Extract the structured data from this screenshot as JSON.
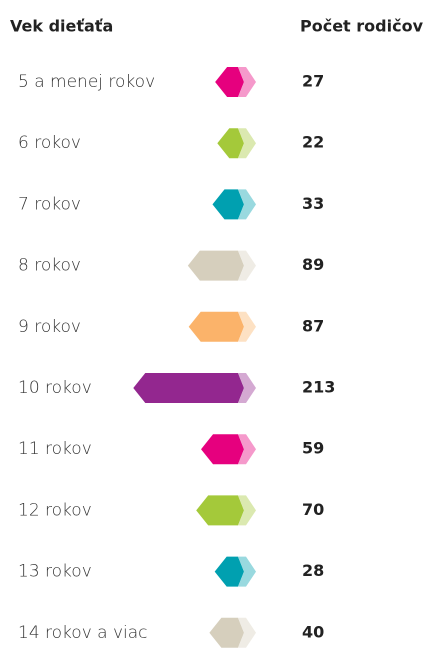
{
  "chart_data": {
    "type": "bar",
    "orientation": "horizontal",
    "category_header": "Vek dieťaťa",
    "value_header": "Počet rodičov",
    "categories": [
      "5 a menej rokov",
      "6 rokov",
      "7 rokov",
      "8 rokov",
      "9 rokov",
      "10 rokov",
      "11 rokov",
      "12 rokov",
      "13 rokov",
      "14 rokov a viac"
    ],
    "values": [
      27,
      22,
      33,
      89,
      87,
      213,
      59,
      70,
      28,
      40
    ],
    "colors": [
      "#e6007e",
      "#a4c93a",
      "#00a0b0",
      "#d6cfbd",
      "#fbb36a",
      "#93278f",
      "#e6007e",
      "#a4c93a",
      "#00a0b0",
      "#d6cfbd"
    ]
  }
}
